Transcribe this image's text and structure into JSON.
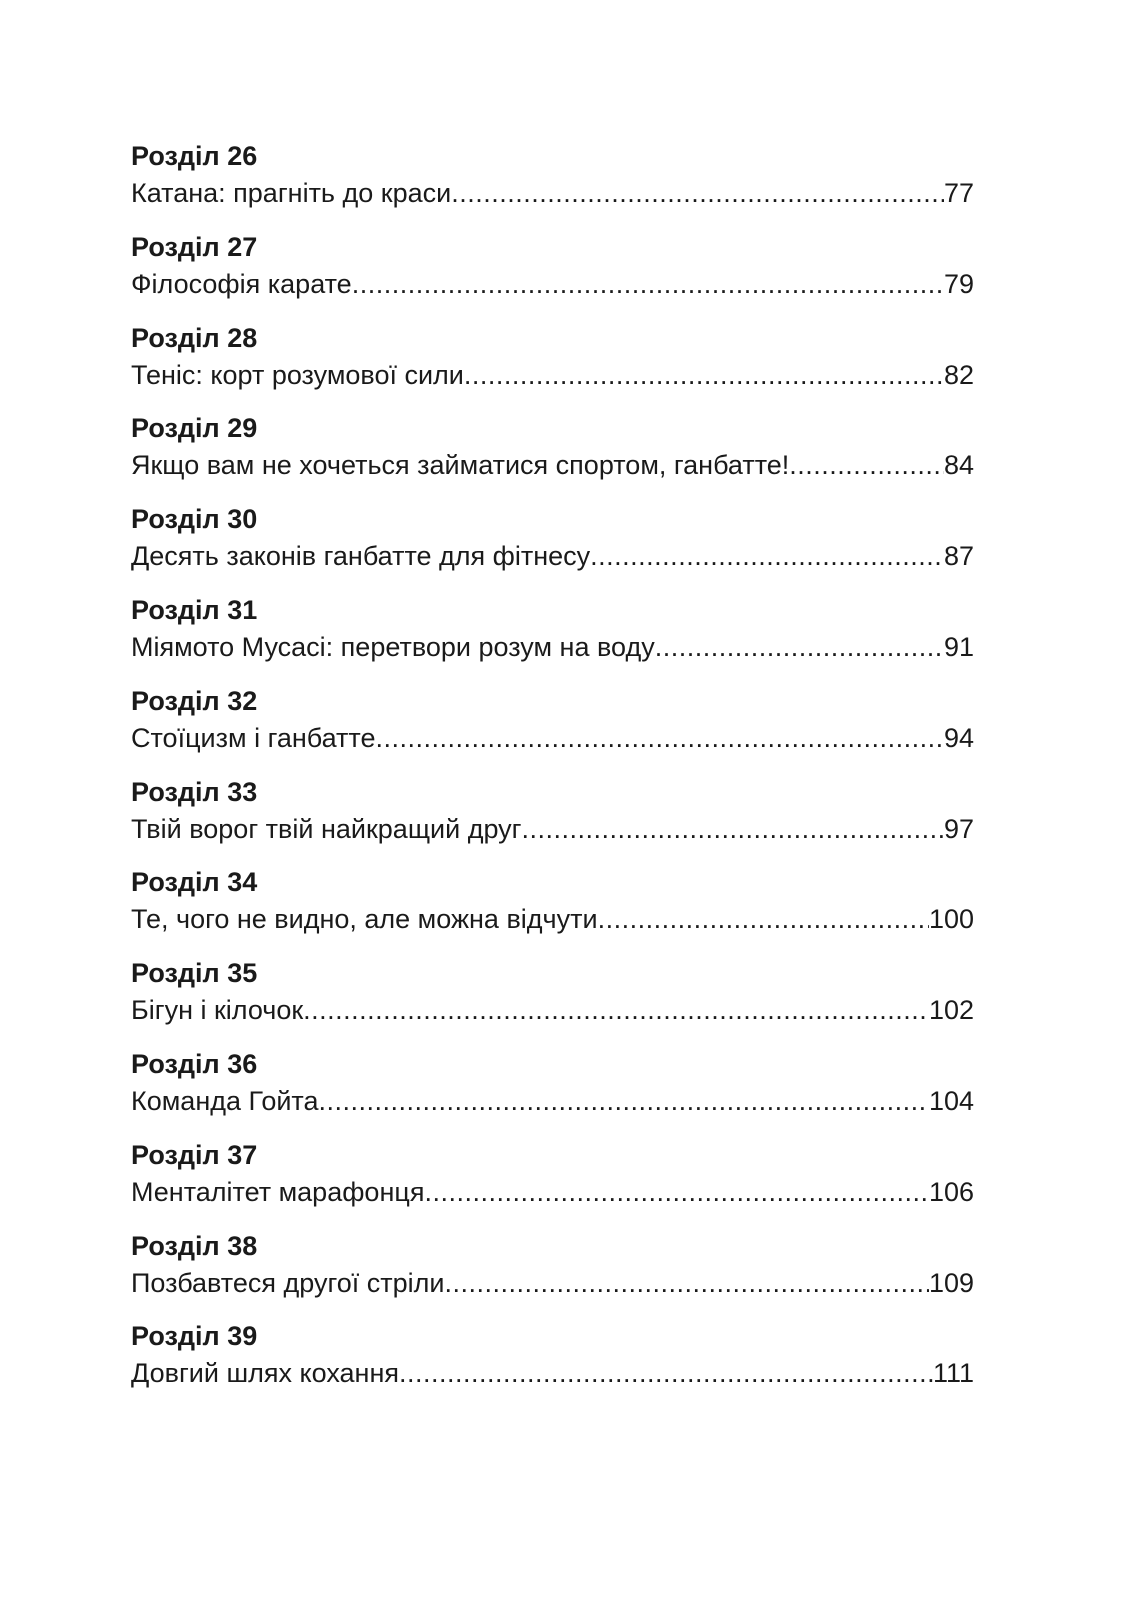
{
  "toc": [
    {
      "heading": "Розділ 26",
      "title": "Катана: прагніть до краси",
      "page": "77"
    },
    {
      "heading": "Розділ 27",
      "title": "Філософія карате ",
      "page": "79"
    },
    {
      "heading": "Розділ 28",
      "title": "Теніс: корт розумової сили ",
      "page": "82"
    },
    {
      "heading": "Розділ 29",
      "title": "Якщо вам не хочеться займатися спортом, ганбатте!",
      "page": "84"
    },
    {
      "heading": "Розділ 30",
      "title": "Десять законів ганбатте для фітнесу ",
      "page": "87"
    },
    {
      "heading": "Розділ 31",
      "title": "Міямото Мусасі: перетвори розум на воду",
      "page": "91"
    },
    {
      "heading": "Розділ 32",
      "title": "Стоїцизм і ганбатте",
      "page": "94"
    },
    {
      "heading": "Розділ 33",
      "title": "Твій ворог твій найкращий друг ",
      "page": "97"
    },
    {
      "heading": "Розділ 34",
      "title": "Те, чого не видно, але можна відчути ",
      "page": "100"
    },
    {
      "heading": "Розділ 35",
      "title": "Бігун і кілочок",
      "page": "102"
    },
    {
      "heading": "Розділ 36",
      "title": "Команда Гойта",
      "page": "104"
    },
    {
      "heading": "Розділ 37",
      "title": "Менталітет марафонця ",
      "page": "106"
    },
    {
      "heading": "Розділ 38",
      "title": "Позбавтеся другої стріли",
      "page": "109"
    },
    {
      "heading": "Розділ 39",
      "title": "Довгий шлях кохання",
      "page": " 111"
    }
  ]
}
